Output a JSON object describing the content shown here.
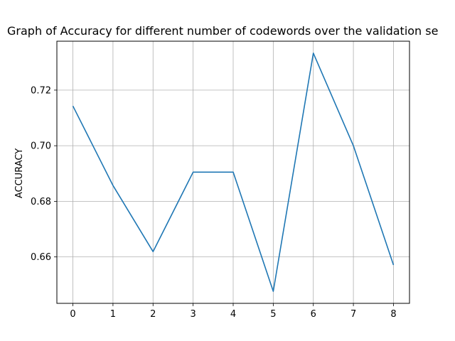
{
  "chart_data": {
    "type": "line",
    "title": "Graph of Accuracy for different number of codewords over the validation se",
    "xlabel": "",
    "ylabel": "ACCURACY",
    "x": [
      0,
      1,
      2,
      3,
      4,
      5,
      6,
      7,
      8
    ],
    "series": [
      {
        "values": [
          0.7143,
          0.6857,
          0.6619,
          0.6905,
          0.6905,
          0.6476,
          0.7333,
          0.7,
          0.6571
        ],
        "color": "#1f77b4"
      }
    ],
    "xlim": [
      -0.4,
      8.4
    ],
    "ylim": [
      0.6433,
      0.7376
    ],
    "xticks": [
      "0",
      "1",
      "2",
      "3",
      "4",
      "5",
      "6",
      "7",
      "8"
    ],
    "yticks": [
      "0.66",
      "0.68",
      "0.70",
      "0.72"
    ],
    "grid": true,
    "grid_color": "#b0b0b0",
    "axes_color": "#000000"
  }
}
